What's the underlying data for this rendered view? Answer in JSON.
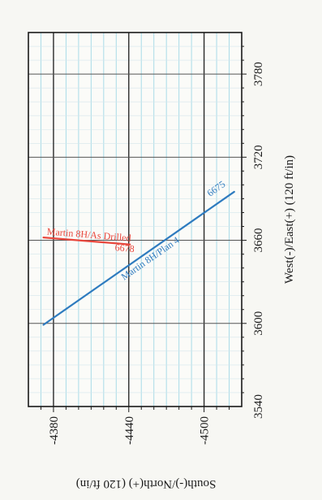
{
  "chart_data": {
    "type": "line",
    "xlabel": "West(-)/East(+) (120 ft/in)",
    "ylabel": "South(-)/North(+) (120 ft/in)",
    "xlim": [
      3540,
      3810
    ],
    "ylim": [
      -4530,
      -4360
    ],
    "x_ticks": [
      "3540",
      "3600",
      "3660",
      "3720",
      "3780"
    ],
    "y_ticks": [
      "-4380",
      "-4440",
      "-4500"
    ],
    "grid": true,
    "series": [
      {
        "name": "Martin 8H/As Drilled",
        "color": "#e8463c",
        "end_label": "6678",
        "points": [
          [
            3662,
            -4372
          ],
          [
            3657,
            -4441
          ]
        ]
      },
      {
        "name": "Martin 8H/Plan 4",
        "color": "#2e7bbf",
        "end_label": "6675",
        "points": [
          [
            3599,
            -4372
          ],
          [
            3695,
            -4524
          ]
        ]
      }
    ]
  }
}
